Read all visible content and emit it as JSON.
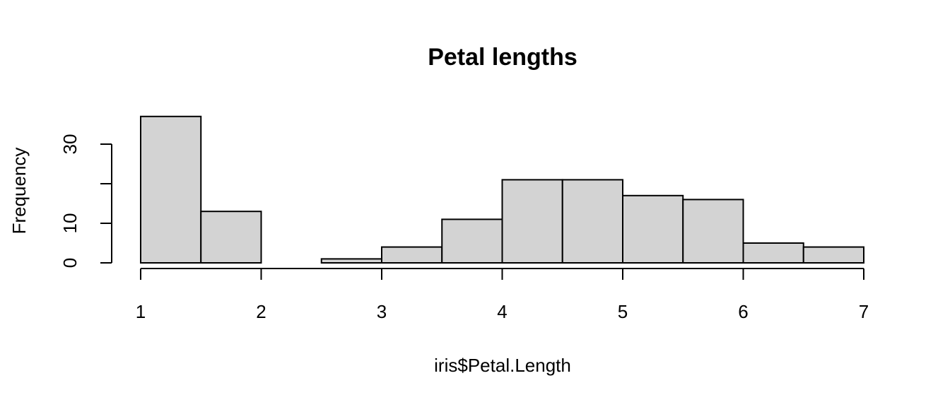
{
  "chart_data": {
    "type": "bar",
    "title": "Petal lengths",
    "xlabel": "iris$Petal.Length",
    "ylabel": "Frequency",
    "breaks": [
      1,
      1.5,
      2,
      2.5,
      3,
      3.5,
      4,
      4.5,
      5,
      5.5,
      6,
      6.5,
      7
    ],
    "values": [
      37,
      13,
      0,
      1,
      4,
      11,
      21,
      21,
      17,
      16,
      5,
      4
    ],
    "xlim": [
      1,
      7
    ],
    "ylim": [
      0,
      37
    ],
    "xticks": [
      1,
      2,
      3,
      4,
      5,
      6,
      7
    ],
    "yticks": [
      0,
      10,
      20,
      30
    ],
    "ytick_labels": [
      "0",
      "10",
      "",
      "30"
    ],
    "bar_color": "#d3d3d3",
    "grid": false
  }
}
